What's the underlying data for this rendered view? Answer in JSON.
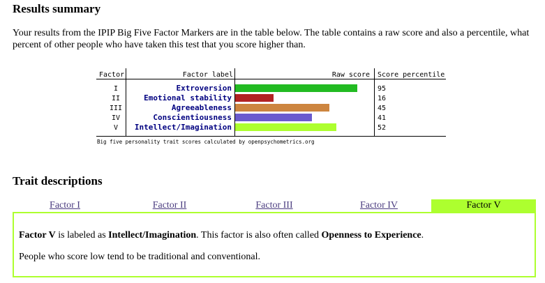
{
  "results": {
    "title": "Results summary",
    "intro": "Your results from the IPIP Big Five Factor Markers are in the table below. The table contains a raw score and also a percentile, what percent of other people who have taken this test that you score higher than."
  },
  "chart_data": {
    "type": "bar",
    "headers": {
      "factor": "Factor",
      "label": "Factor label",
      "raw": "Raw score",
      "percentile": "Score percentile"
    },
    "factors": [
      "I",
      "II",
      "III",
      "IV",
      "V"
    ],
    "categories": [
      "Extroversion",
      "Emotional stability",
      "Agreeableness",
      "Conscientiousness",
      "Intellect/Imagination"
    ],
    "raw_scores": [
      35,
      11,
      27,
      22,
      29
    ],
    "percentiles": [
      95,
      16,
      45,
      41,
      52
    ],
    "colors": [
      "#22bb22",
      "#b22222",
      "#cd853f",
      "#6a5acd",
      "#adff2f"
    ],
    "raw_max": 40,
    "footnote": "Big five personality trait scores calculated by openpsychometrics.org"
  },
  "traits": {
    "title": "Trait descriptions",
    "tabs": [
      "Factor I",
      "Factor II",
      "Factor III",
      "Factor IV",
      "Factor V"
    ],
    "active_index": 4,
    "panel": {
      "factor": "Factor V",
      "t1": " is labeled as ",
      "label": "Intellect/Imagination",
      "t2": ". This factor is also often called ",
      "alt": "Openness to Experience",
      "t3": ".",
      "low": "People who score low tend to be traditional and conventional."
    }
  }
}
